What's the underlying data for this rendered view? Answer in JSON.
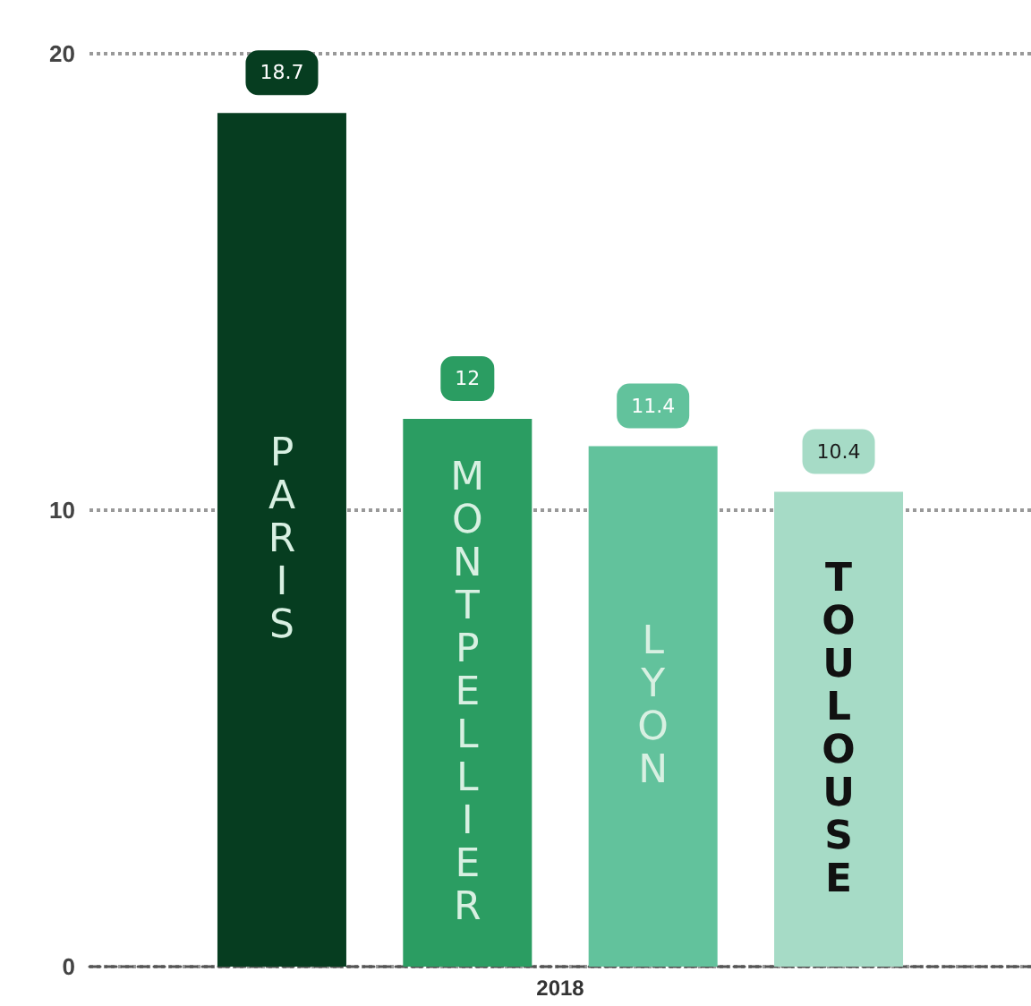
{
  "chart_data": {
    "type": "bar",
    "categories": [
      "2018"
    ],
    "series": [
      {
        "name": "PARIS",
        "color": "#063d20",
        "values": [
          18.7
        ]
      },
      {
        "name": "MONTPELLIER",
        "color": "#2b9d62",
        "values": [
          12
        ]
      },
      {
        "name": "LYON",
        "color": "#62c29c",
        "values": [
          11.4
        ]
      },
      {
        "name": "TOULOUSE",
        "color": "#a6dbc6",
        "values": [
          10.4
        ]
      }
    ],
    "ylim": [
      0,
      20
    ],
    "yticks": [
      0,
      10,
      20
    ],
    "grid": "y",
    "legend": false,
    "data_labels": true
  }
}
